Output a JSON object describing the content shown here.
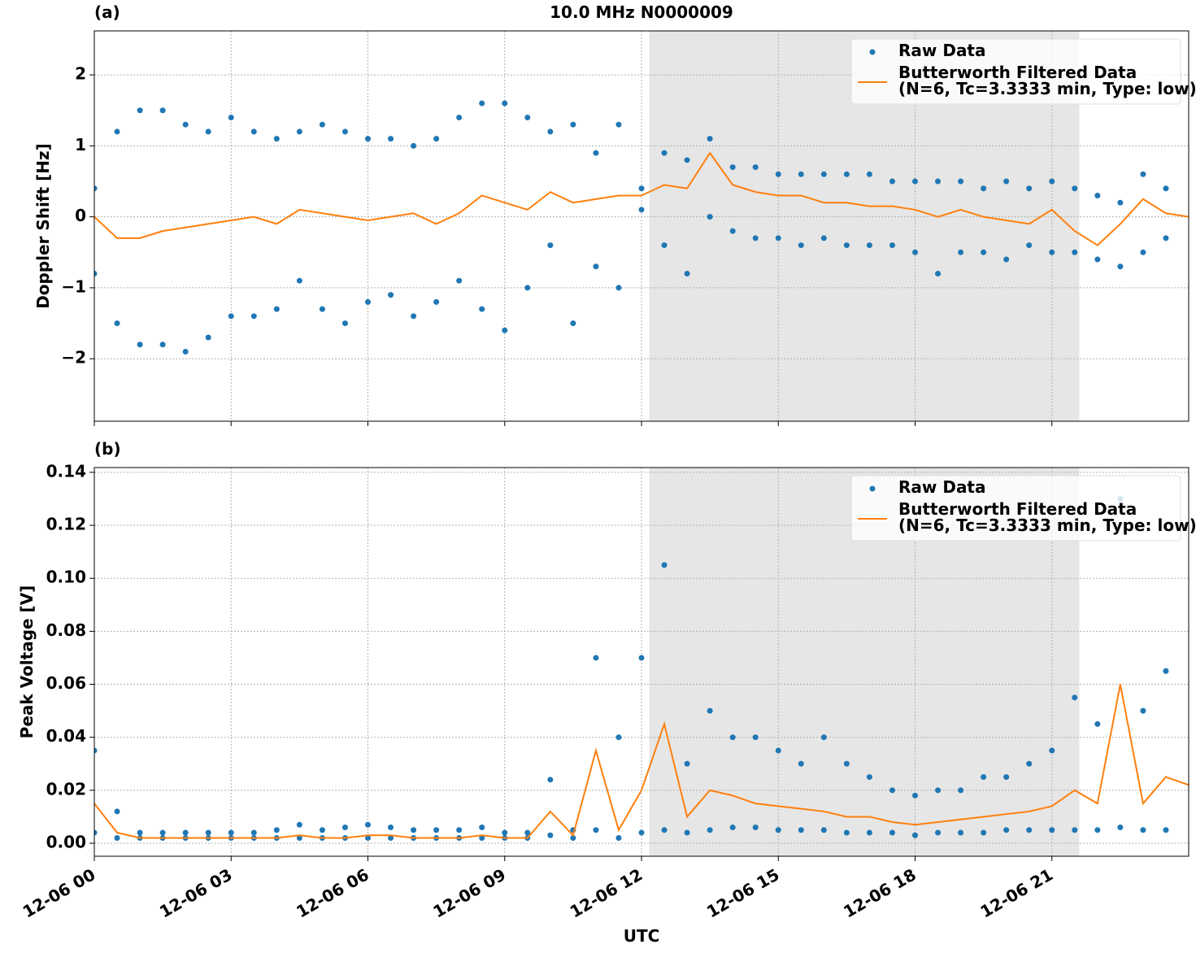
{
  "chart_data": [
    {
      "type": "scatter-line",
      "panel_label": "(a)",
      "title": "10.0 MHz N0000009",
      "ylabel": "Doppler Shift [Hz]",
      "xlim": [
        0,
        24
      ],
      "xticks": [
        0,
        3,
        6,
        9,
        12,
        15,
        18,
        21
      ],
      "ylim": [
        -2.88,
        2.62
      ],
      "yticks": [
        {
          "value": -2,
          "label": "−2"
        },
        {
          "value": -1,
          "label": "−1"
        },
        0,
        1,
        2
      ],
      "grid": true,
      "legend": "upper right",
      "shaded_span": [
        12.17,
        21.6
      ],
      "shade_color": "#e6e6e6",
      "series": [
        {
          "name": "Raw Data",
          "color": "#1f77b4",
          "marker": "point",
          "x": [
            0,
            0,
            0.5,
            0.5,
            1,
            1,
            1.5,
            1.5,
            2,
            2,
            2.5,
            2.5,
            3,
            3,
            3.5,
            3.5,
            4,
            4,
            4.5,
            4.5,
            5,
            5,
            5.5,
            5.5,
            6,
            6,
            6.5,
            6.5,
            7,
            7,
            7.5,
            7.5,
            8,
            8,
            8.5,
            8.5,
            9,
            9,
            9.5,
            9.5,
            10,
            10,
            10.5,
            10.5,
            11,
            11,
            11.5,
            11.5,
            12,
            12,
            12.5,
            12.5,
            13,
            13,
            13.5,
            13.5,
            14,
            14,
            14.5,
            14.5,
            15,
            15,
            15.5,
            15.5,
            16,
            16,
            16.5,
            16.5,
            17,
            17,
            17.5,
            17.5,
            18,
            18,
            18.5,
            18.5,
            19,
            19,
            19.5,
            19.5,
            20,
            20,
            20.5,
            20.5,
            21,
            21,
            21.5,
            21.5,
            22,
            22,
            22.5,
            22.5,
            23,
            23,
            23.5,
            23.5
          ],
          "values": [
            0.4,
            -0.8,
            1.2,
            -1.5,
            1.5,
            -1.8,
            1.5,
            -1.8,
            1.3,
            -1.9,
            1.2,
            -1.7,
            1.4,
            -1.4,
            1.2,
            -1.4,
            1.1,
            -1.3,
            1.2,
            -0.9,
            1.3,
            -1.3,
            1.2,
            -1.5,
            1.1,
            -1.2,
            1.1,
            -1.1,
            1.0,
            -1.4,
            1.1,
            -1.2,
            1.4,
            -0.9,
            1.6,
            -1.3,
            1.6,
            -1.6,
            1.4,
            -1.0,
            1.2,
            -0.4,
            1.3,
            -1.5,
            0.9,
            -0.7,
            1.3,
            -1.0,
            0.4,
            0.1,
            0.9,
            -0.4,
            0.8,
            -0.8,
            1.1,
            0.0,
            0.7,
            -0.2,
            0.7,
            -0.3,
            0.6,
            -0.3,
            0.6,
            -0.4,
            0.6,
            -0.3,
            0.6,
            -0.4,
            0.6,
            -0.4,
            0.5,
            -0.4,
            0.5,
            -0.5,
            0.5,
            -0.8,
            0.5,
            -0.5,
            0.4,
            -0.5,
            0.5,
            -0.6,
            0.4,
            -0.4,
            0.5,
            -0.5,
            0.4,
            -0.5,
            0.3,
            -0.6,
            0.2,
            -0.7,
            0.6,
            -0.5,
            0.4,
            -0.3
          ]
        },
        {
          "name": "Butterworth Filtered Data\n(N=6, Tc=3.3333 min, Type: low)",
          "color": "#ff7f0e",
          "marker": "line",
          "x": [
            0,
            0.5,
            1,
            1.5,
            2,
            2.5,
            3,
            3.5,
            4,
            4.5,
            5,
            5.5,
            6,
            6.5,
            7,
            7.5,
            8,
            8.5,
            9,
            9.5,
            10,
            10.5,
            11,
            11.5,
            12,
            12.5,
            13,
            13.5,
            14,
            14.5,
            15,
            15.5,
            16,
            16.5,
            17,
            17.5,
            18,
            18.5,
            19,
            19.5,
            20,
            20.5,
            21,
            21.5,
            22,
            22.5,
            23,
            23.5,
            24
          ],
          "values": [
            0.0,
            -0.3,
            -0.3,
            -0.2,
            -0.15,
            -0.1,
            -0.05,
            0.0,
            -0.1,
            0.1,
            0.05,
            0.0,
            -0.05,
            0.0,
            0.05,
            -0.1,
            0.05,
            0.3,
            0.2,
            0.1,
            0.35,
            0.2,
            0.25,
            0.3,
            0.3,
            0.45,
            0.4,
            0.9,
            0.45,
            0.35,
            0.3,
            0.3,
            0.2,
            0.2,
            0.15,
            0.15,
            0.1,
            0.0,
            0.1,
            0.0,
            -0.05,
            -0.1,
            0.1,
            -0.2,
            -0.4,
            -0.1,
            0.25,
            0.05,
            0.0
          ]
        }
      ]
    },
    {
      "type": "scatter-line",
      "panel_label": "(b)",
      "ylabel": "Peak Voltage [V]",
      "xlabel": "UTC",
      "xlim": [
        0,
        24
      ],
      "xticks": [
        {
          "value": 0,
          "label": "12-06 00"
        },
        {
          "value": 3,
          "label": "12-06 03"
        },
        {
          "value": 6,
          "label": "12-06 06"
        },
        {
          "value": 9,
          "label": "12-06 09"
        },
        {
          "value": 12,
          "label": "12-06 12"
        },
        {
          "value": 15,
          "label": "12-06 15"
        },
        {
          "value": 18,
          "label": "12-06 18"
        },
        {
          "value": 21,
          "label": "12-06 21"
        }
      ],
      "ylim": [
        -0.0049,
        0.1418
      ],
      "yticks": [
        {
          "value": 0,
          "label": "0.00"
        },
        {
          "value": 0.02,
          "label": "0.02"
        },
        {
          "value": 0.04,
          "label": "0.04"
        },
        {
          "value": 0.06,
          "label": "0.06"
        },
        {
          "value": 0.08,
          "label": "0.08"
        },
        {
          "value": 0.1,
          "label": "0.10"
        },
        {
          "value": 0.12,
          "label": "0.12"
        },
        {
          "value": 0.14,
          "label": "0.14"
        }
      ],
      "grid": true,
      "legend": "upper right",
      "shaded_span": [
        12.17,
        21.6
      ],
      "shade_color": "#e6e6e6",
      "series": [
        {
          "name": "Raw Data",
          "color": "#1f77b4",
          "marker": "point",
          "x": [
            0,
            0,
            0.5,
            0.5,
            1,
            1,
            1.5,
            1.5,
            2,
            2,
            2.5,
            2.5,
            3,
            3,
            3.5,
            3.5,
            4,
            4,
            4.5,
            4.5,
            5,
            5,
            5.5,
            5.5,
            6,
            6,
            6.5,
            6.5,
            7,
            7,
            7.5,
            7.5,
            8,
            8,
            8.5,
            8.5,
            9,
            9,
            9.5,
            9.5,
            10,
            10,
            10.5,
            10.5,
            11,
            11,
            11.5,
            11.5,
            12,
            12,
            12.5,
            12.5,
            13,
            13,
            13.5,
            13.5,
            14,
            14,
            14.5,
            14.5,
            15,
            15,
            15.5,
            15.5,
            16,
            16,
            16.5,
            16.5,
            17,
            17,
            17.5,
            17.5,
            18,
            18,
            18.5,
            18.5,
            19,
            19,
            19.5,
            19.5,
            20,
            20,
            20.5,
            20.5,
            21,
            21,
            21.5,
            21.5,
            22,
            22,
            22.5,
            22.5,
            23,
            23,
            23.5,
            23.5
          ],
          "values": [
            0.035,
            0.004,
            0.012,
            0.002,
            0.004,
            0.002,
            0.004,
            0.002,
            0.004,
            0.002,
            0.004,
            0.002,
            0.004,
            0.002,
            0.004,
            0.002,
            0.005,
            0.002,
            0.007,
            0.002,
            0.005,
            0.002,
            0.006,
            0.002,
            0.007,
            0.002,
            0.006,
            0.002,
            0.005,
            0.002,
            0.005,
            0.002,
            0.005,
            0.002,
            0.006,
            0.002,
            0.004,
            0.002,
            0.004,
            0.002,
            0.024,
            0.003,
            0.005,
            0.002,
            0.07,
            0.005,
            0.04,
            0.002,
            0.07,
            0.004,
            0.105,
            0.005,
            0.03,
            0.004,
            0.05,
            0.005,
            0.04,
            0.006,
            0.04,
            0.006,
            0.035,
            0.005,
            0.03,
            0.005,
            0.04,
            0.005,
            0.03,
            0.004,
            0.025,
            0.004,
            0.02,
            0.004,
            0.018,
            0.003,
            0.02,
            0.004,
            0.02,
            0.004,
            0.025,
            0.004,
            0.025,
            0.005,
            0.03,
            0.005,
            0.035,
            0.005,
            0.055,
            0.005,
            0.045,
            0.005,
            0.13,
            0.006,
            0.05,
            0.005,
            0.065,
            0.005
          ]
        },
        {
          "name": "Butterworth Filtered Data\n(N=6, Tc=3.3333 min, Type: low)",
          "color": "#ff7f0e",
          "marker": "line",
          "x": [
            0,
            0.5,
            1,
            1.5,
            2,
            2.5,
            3,
            3.5,
            4,
            4.5,
            5,
            5.5,
            6,
            6.5,
            7,
            7.5,
            8,
            8.5,
            9,
            9.5,
            10,
            10.5,
            11,
            11.5,
            12,
            12.5,
            13,
            13.5,
            14,
            14.5,
            15,
            15.5,
            16,
            16.5,
            17,
            17.5,
            18,
            18.5,
            19,
            19.5,
            20,
            20.5,
            21,
            21.5,
            22,
            22.5,
            23,
            23.5,
            24
          ],
          "values": [
            0.015,
            0.004,
            0.002,
            0.002,
            0.002,
            0.002,
            0.002,
            0.002,
            0.002,
            0.003,
            0.002,
            0.002,
            0.003,
            0.003,
            0.002,
            0.002,
            0.002,
            0.003,
            0.002,
            0.002,
            0.012,
            0.003,
            0.035,
            0.005,
            0.02,
            0.045,
            0.01,
            0.02,
            0.018,
            0.015,
            0.014,
            0.013,
            0.012,
            0.01,
            0.01,
            0.008,
            0.007,
            0.008,
            0.009,
            0.01,
            0.011,
            0.012,
            0.014,
            0.02,
            0.015,
            0.06,
            0.015,
            0.025,
            0.022
          ]
        }
      ]
    }
  ]
}
